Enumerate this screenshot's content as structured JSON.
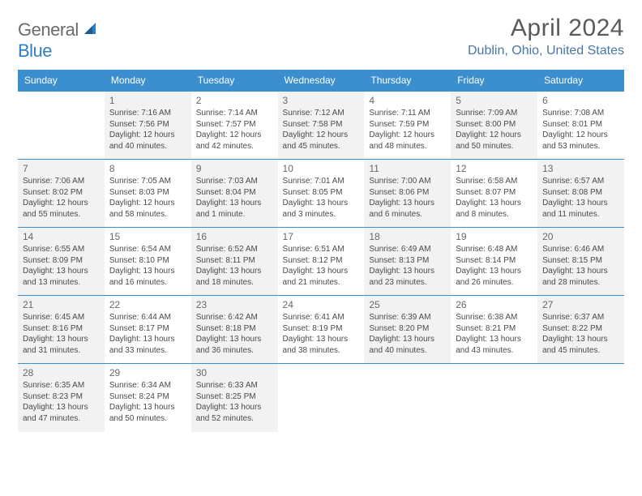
{
  "logo": {
    "text1": "General",
    "text2": "Blue"
  },
  "title": "April 2024",
  "location": "Dublin, Ohio, United States",
  "colors": {
    "header_bg": "#3c8fcf",
    "header_text": "#ffffff",
    "location_text": "#4777a6",
    "shade_bg": "#f2f2f2",
    "row_border": "#3c8fcf"
  },
  "weekdays": [
    "Sunday",
    "Monday",
    "Tuesday",
    "Wednesday",
    "Thursday",
    "Friday",
    "Saturday"
  ],
  "weeks": [
    [
      {
        "day": "",
        "lines": []
      },
      {
        "day": "1",
        "shade": true,
        "lines": [
          "Sunrise: 7:16 AM",
          "Sunset: 7:56 PM",
          "Daylight: 12 hours",
          "and 40 minutes."
        ]
      },
      {
        "day": "2",
        "lines": [
          "Sunrise: 7:14 AM",
          "Sunset: 7:57 PM",
          "Daylight: 12 hours",
          "and 42 minutes."
        ]
      },
      {
        "day": "3",
        "shade": true,
        "lines": [
          "Sunrise: 7:12 AM",
          "Sunset: 7:58 PM",
          "Daylight: 12 hours",
          "and 45 minutes."
        ]
      },
      {
        "day": "4",
        "lines": [
          "Sunrise: 7:11 AM",
          "Sunset: 7:59 PM",
          "Daylight: 12 hours",
          "and 48 minutes."
        ]
      },
      {
        "day": "5",
        "shade": true,
        "lines": [
          "Sunrise: 7:09 AM",
          "Sunset: 8:00 PM",
          "Daylight: 12 hours",
          "and 50 minutes."
        ]
      },
      {
        "day": "6",
        "lines": [
          "Sunrise: 7:08 AM",
          "Sunset: 8:01 PM",
          "Daylight: 12 hours",
          "and 53 minutes."
        ]
      }
    ],
    [
      {
        "day": "7",
        "shade": true,
        "lines": [
          "Sunrise: 7:06 AM",
          "Sunset: 8:02 PM",
          "Daylight: 12 hours",
          "and 55 minutes."
        ]
      },
      {
        "day": "8",
        "lines": [
          "Sunrise: 7:05 AM",
          "Sunset: 8:03 PM",
          "Daylight: 12 hours",
          "and 58 minutes."
        ]
      },
      {
        "day": "9",
        "shade": true,
        "lines": [
          "Sunrise: 7:03 AM",
          "Sunset: 8:04 PM",
          "Daylight: 13 hours",
          "and 1 minute."
        ]
      },
      {
        "day": "10",
        "lines": [
          "Sunrise: 7:01 AM",
          "Sunset: 8:05 PM",
          "Daylight: 13 hours",
          "and 3 minutes."
        ]
      },
      {
        "day": "11",
        "shade": true,
        "lines": [
          "Sunrise: 7:00 AM",
          "Sunset: 8:06 PM",
          "Daylight: 13 hours",
          "and 6 minutes."
        ]
      },
      {
        "day": "12",
        "lines": [
          "Sunrise: 6:58 AM",
          "Sunset: 8:07 PM",
          "Daylight: 13 hours",
          "and 8 minutes."
        ]
      },
      {
        "day": "13",
        "shade": true,
        "lines": [
          "Sunrise: 6:57 AM",
          "Sunset: 8:08 PM",
          "Daylight: 13 hours",
          "and 11 minutes."
        ]
      }
    ],
    [
      {
        "day": "14",
        "shade": true,
        "lines": [
          "Sunrise: 6:55 AM",
          "Sunset: 8:09 PM",
          "Daylight: 13 hours",
          "and 13 minutes."
        ]
      },
      {
        "day": "15",
        "lines": [
          "Sunrise: 6:54 AM",
          "Sunset: 8:10 PM",
          "Daylight: 13 hours",
          "and 16 minutes."
        ]
      },
      {
        "day": "16",
        "shade": true,
        "lines": [
          "Sunrise: 6:52 AM",
          "Sunset: 8:11 PM",
          "Daylight: 13 hours",
          "and 18 minutes."
        ]
      },
      {
        "day": "17",
        "lines": [
          "Sunrise: 6:51 AM",
          "Sunset: 8:12 PM",
          "Daylight: 13 hours",
          "and 21 minutes."
        ]
      },
      {
        "day": "18",
        "shade": true,
        "lines": [
          "Sunrise: 6:49 AM",
          "Sunset: 8:13 PM",
          "Daylight: 13 hours",
          "and 23 minutes."
        ]
      },
      {
        "day": "19",
        "lines": [
          "Sunrise: 6:48 AM",
          "Sunset: 8:14 PM",
          "Daylight: 13 hours",
          "and 26 minutes."
        ]
      },
      {
        "day": "20",
        "shade": true,
        "lines": [
          "Sunrise: 6:46 AM",
          "Sunset: 8:15 PM",
          "Daylight: 13 hours",
          "and 28 minutes."
        ]
      }
    ],
    [
      {
        "day": "21",
        "shade": true,
        "lines": [
          "Sunrise: 6:45 AM",
          "Sunset: 8:16 PM",
          "Daylight: 13 hours",
          "and 31 minutes."
        ]
      },
      {
        "day": "22",
        "lines": [
          "Sunrise: 6:44 AM",
          "Sunset: 8:17 PM",
          "Daylight: 13 hours",
          "and 33 minutes."
        ]
      },
      {
        "day": "23",
        "shade": true,
        "lines": [
          "Sunrise: 6:42 AM",
          "Sunset: 8:18 PM",
          "Daylight: 13 hours",
          "and 36 minutes."
        ]
      },
      {
        "day": "24",
        "lines": [
          "Sunrise: 6:41 AM",
          "Sunset: 8:19 PM",
          "Daylight: 13 hours",
          "and 38 minutes."
        ]
      },
      {
        "day": "25",
        "shade": true,
        "lines": [
          "Sunrise: 6:39 AM",
          "Sunset: 8:20 PM",
          "Daylight: 13 hours",
          "and 40 minutes."
        ]
      },
      {
        "day": "26",
        "lines": [
          "Sunrise: 6:38 AM",
          "Sunset: 8:21 PM",
          "Daylight: 13 hours",
          "and 43 minutes."
        ]
      },
      {
        "day": "27",
        "shade": true,
        "lines": [
          "Sunrise: 6:37 AM",
          "Sunset: 8:22 PM",
          "Daylight: 13 hours",
          "and 45 minutes."
        ]
      }
    ],
    [
      {
        "day": "28",
        "shade": true,
        "lines": [
          "Sunrise: 6:35 AM",
          "Sunset: 8:23 PM",
          "Daylight: 13 hours",
          "and 47 minutes."
        ]
      },
      {
        "day": "29",
        "lines": [
          "Sunrise: 6:34 AM",
          "Sunset: 8:24 PM",
          "Daylight: 13 hours",
          "and 50 minutes."
        ]
      },
      {
        "day": "30",
        "shade": true,
        "lines": [
          "Sunrise: 6:33 AM",
          "Sunset: 8:25 PM",
          "Daylight: 13 hours",
          "and 52 minutes."
        ]
      },
      {
        "day": "",
        "lines": []
      },
      {
        "day": "",
        "lines": []
      },
      {
        "day": "",
        "lines": []
      },
      {
        "day": "",
        "lines": []
      }
    ]
  ]
}
